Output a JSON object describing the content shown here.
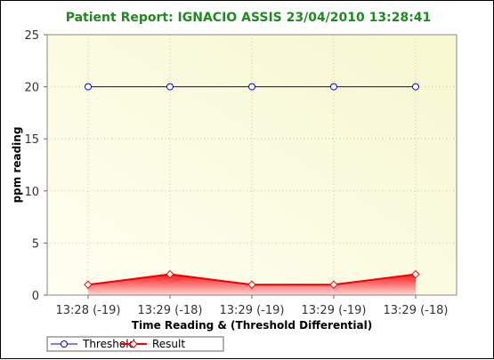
{
  "chart_data": {
    "type": "line",
    "title": "Patient Report: IGNACIO ASSIS 23/04/2010 13:28:41",
    "xlabel": "Time Reading & (Threshold Differential)",
    "ylabel": "ppm reading",
    "categories": [
      "13:28 (-19)",
      "13:29 (-18)",
      "13:29 (-19)",
      "13:29 (-19)",
      "13:29 (-18)"
    ],
    "ylim": [
      0,
      25
    ],
    "yticks": [
      0,
      5,
      10,
      15,
      20,
      25
    ],
    "grid": true,
    "legend": "bottom-left",
    "series": [
      {
        "name": "Threshold",
        "values": [
          20,
          20,
          20,
          20,
          20
        ],
        "color": "#0000cc",
        "marker": "circle",
        "fill": false
      },
      {
        "name": "Result",
        "values": [
          1,
          2,
          1,
          1,
          2
        ],
        "color": "#ee0000",
        "marker": "diamond",
        "fill": true
      }
    ]
  },
  "colors": {
    "title": "#1f8a1f",
    "plot_bg_light": "#fffff2",
    "plot_bg_dark": "#f7f7d0"
  }
}
